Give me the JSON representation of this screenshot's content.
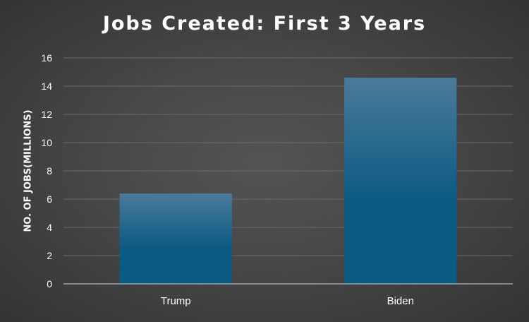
{
  "chart_data": {
    "type": "bar",
    "title": "Jobs Created: First 3 Years",
    "xlabel": "",
    "ylabel": "NO. OF JOBS(MILLIONS)",
    "categories": [
      "Trump",
      "Biden"
    ],
    "values": [
      6.4,
      14.6
    ],
    "ylim": [
      0,
      16
    ],
    "yticks": [
      "0",
      "2",
      "4",
      "6",
      "8",
      "10",
      "12",
      "14",
      "16"
    ],
    "grid": true,
    "legend": "none",
    "colors": {
      "bar_top": "#4a7a9a",
      "bar_bottom": "#0b5a82",
      "grid": "#6a6a6a",
      "axis": "#a0a0a0",
      "text": "#ffffff"
    }
  }
}
